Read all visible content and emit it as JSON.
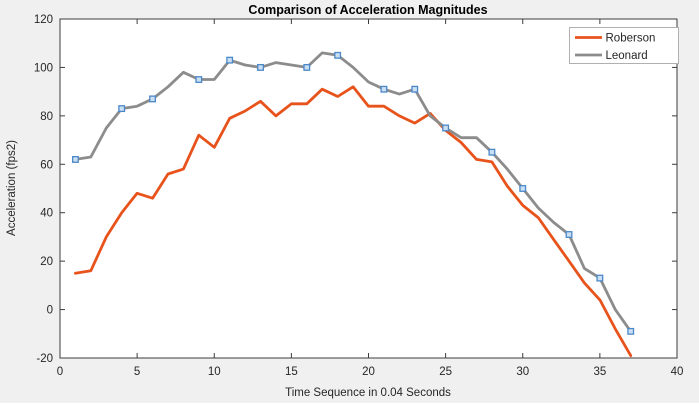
{
  "figure": {
    "background": "#f0f0f0",
    "plot_background": "#ffffff",
    "axis_color": "#3c3c3c",
    "tick_label_color": "#262626",
    "title_color": "#000000",
    "legend_border_color": "#b0b0b0"
  },
  "chart_data": {
    "type": "line",
    "title": "Comparison of Acceleration Magnitudes",
    "xlabel": "Time Sequence in 0.04 Seconds",
    "ylabel": "Acceleration (fps2)",
    "xlim": [
      0,
      40
    ],
    "ylim": [
      -20,
      120
    ],
    "xticks": [
      0,
      5,
      10,
      15,
      20,
      25,
      30,
      35,
      40
    ],
    "yticks": [
      -20,
      0,
      20,
      40,
      60,
      80,
      100,
      120
    ],
    "grid": false,
    "legend_position": "top-right",
    "x": [
      1,
      2,
      3,
      4,
      5,
      6,
      7,
      8,
      9,
      10,
      11,
      12,
      13,
      14,
      15,
      16,
      17,
      18,
      19,
      20,
      21,
      22,
      23,
      24,
      25,
      26,
      27,
      28,
      29,
      30,
      31,
      32,
      33,
      34,
      35,
      36,
      37
    ],
    "series": [
      {
        "name": "Roberson",
        "color": "#e8531c",
        "line_width": 2.8,
        "marker": "none",
        "values": [
          15,
          16,
          30,
          40,
          48,
          46,
          56,
          58,
          72,
          67,
          79,
          82,
          86,
          80,
          85,
          85,
          91,
          88,
          92,
          84,
          84,
          80,
          77,
          81,
          74,
          69,
          62,
          61,
          51,
          43,
          38,
          29,
          20,
          11,
          4,
          -8,
          -19
        ]
      },
      {
        "name": "Leonard",
        "color": "#8c8c8c",
        "line_width": 2.8,
        "marker": "square",
        "marker_edge_color": "#4b88c9",
        "marker_fill_color": "#cbdff2",
        "marker_x": [
          1,
          4,
          6,
          9,
          11,
          13,
          16,
          18,
          21,
          23,
          25,
          28,
          30,
          33,
          35,
          37
        ],
        "values": [
          62,
          63,
          75,
          83,
          84,
          87,
          92,
          98,
          95,
          95,
          103,
          101,
          100,
          102,
          101,
          100,
          106,
          105,
          100,
          94,
          91,
          89,
          91,
          80,
          75,
          71,
          71,
          65,
          58,
          50,
          42,
          36,
          31,
          17,
          13,
          0,
          -9
        ]
      }
    ]
  }
}
